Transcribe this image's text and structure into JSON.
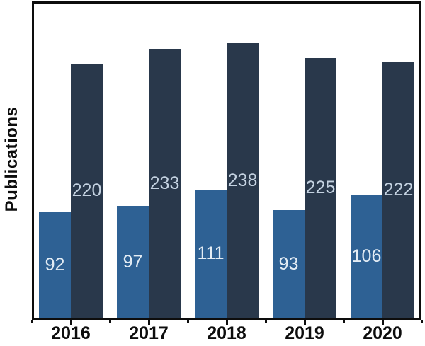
{
  "figure": {
    "background_color": "#ffffff",
    "axis_color": "#0d0d0d"
  },
  "chart_data": {
    "type": "bar",
    "title": "",
    "xlabel": "",
    "ylabel": "Publications",
    "categories": [
      "2016",
      "2017",
      "2018",
      "2019",
      "2020"
    ],
    "series": [
      {
        "name": "light-blue-series",
        "color": "#2e6194",
        "label_color": "#e3ecf4",
        "values": [
          92,
          97,
          111,
          93,
          106
        ]
      },
      {
        "name": "dark-navy-series",
        "color": "#29384b",
        "label_color": "#c4d2e1",
        "values": [
          220,
          233,
          238,
          225,
          222
        ]
      }
    ],
    "ylim": [
      0,
      272
    ],
    "grid": false,
    "legend": "none",
    "value_labels": "inside-center",
    "tick_style": "major-under-category-minor-between"
  }
}
